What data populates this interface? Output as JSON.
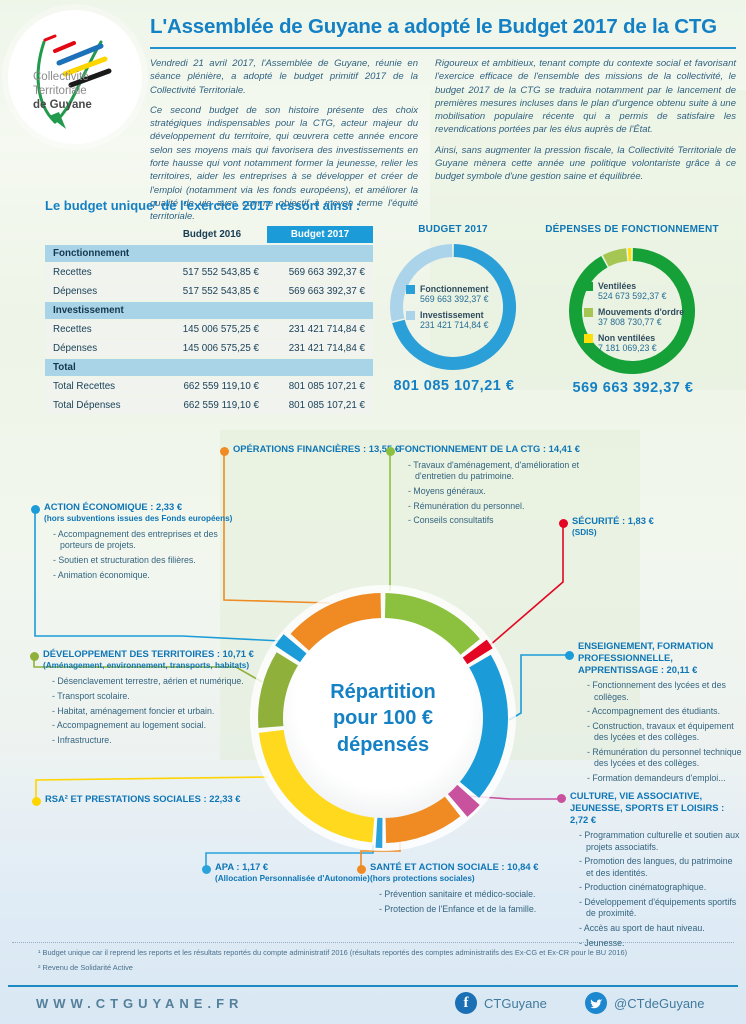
{
  "header": {
    "logo": {
      "line1": "Collectivité",
      "line2": "Territoriale",
      "line3": "de Guyane"
    },
    "title": "L'Assemblée de Guyane a adopté le Budget 2017 de la CTG",
    "intro_left": [
      "Vendredi 21 avril 2017, l'Assemblée de Guyane, réunie en séance plénière, a adopté le budget primitif 2017 de la Collectivité Territoriale.",
      "Ce second budget de son histoire présente des choix stratégiques indispensables pour la CTG, acteur majeur du développement du territoire, qui œuvrera cette année encore selon ses moyens mais qui favorisera des investissements en forte hausse qui vont notamment former la jeunesse, relier les territoires, aider les entreprises à se développer et créer de l'emploi (notamment via les fonds européens), et améliorer la qualité de vie avec comme objectif à moyen terme l'équité territoriale."
    ],
    "intro_right": [
      "Rigoureux et ambitieux, tenant compte du contexte social et favorisant l'exercice efficace de l'ensemble des missions de la collectivité, le budget 2017 de la CTG se traduira notamment par le lancement de premières mesures incluses dans le plan d'urgence obtenu suite à une mobilisation populaire récente qui a permis de satisfaire les revendications portées par les élus auprès de l'État.",
      "Ainsi, sans augmenter la pression fiscale, la Collectivité Territoriale de Guyane mènera cette année une politique volontariste grâce à ce budget symbole d'une gestion saine et équilibrée."
    ]
  },
  "budget_section": {
    "heading": "Le budget unique¹ de l'exercice 2017 ressort ainsi :",
    "table": {
      "columns": [
        "",
        "Budget 2016",
        "Budget 2017"
      ],
      "rows": [
        {
          "type": "section",
          "label": "Fonctionnement"
        },
        {
          "type": "data",
          "label": "Recettes",
          "budget2016": "517 552 543,85 €",
          "budget2017": "569 663 392,37 €"
        },
        {
          "type": "data",
          "label": "Dépenses",
          "budget2016": "517 552 543,85 €",
          "budget2017": "569 663 392,37 €"
        },
        {
          "type": "section",
          "label": "Investissement"
        },
        {
          "type": "data",
          "label": "Recettes",
          "budget2016": "145 006 575,25 €",
          "budget2017": "231 421 714,84 €"
        },
        {
          "type": "data",
          "label": "Dépenses",
          "budget2016": "145 006 575,25 €",
          "budget2017": "231 421 714,84 €"
        },
        {
          "type": "section",
          "label": "Total"
        },
        {
          "type": "data",
          "label": "Total Recettes",
          "budget2016": "662 559 119,10 €",
          "budget2017": "801 085 107,21 €"
        },
        {
          "type": "data",
          "label": "Total Dépenses",
          "budget2016": "662 559 119,10 €",
          "budget2017": "801 085 107,21 €"
        }
      ]
    }
  },
  "donut_budget2017": {
    "title": "BUDGET 2017",
    "total": "801 085 107,21 €",
    "legend": [
      {
        "label": "Fonctionnement",
        "value": "569 663 392,37 €",
        "color": "#2b9fd8"
      },
      {
        "label": "Investissement",
        "value": "231 421 714,84 €",
        "color": "#abd3ea"
      }
    ]
  },
  "donut_depenses": {
    "title": "DÉPENSES DE FONCTIONNEMENT",
    "total": "569 663 392,37 €",
    "legend": [
      {
        "label": "Ventilées",
        "value": "524 673 592,37 €",
        "color": "#16a038"
      },
      {
        "label": "Mouvements d'ordre",
        "value": "37 808 730,77 €",
        "color": "#a6c653"
      },
      {
        "label": "Non ventilées",
        "value": "7 181 069,23 €",
        "color": "#ffdf0a"
      }
    ]
  },
  "repartition": {
    "center": [
      "Répartition",
      "pour 100 €",
      "dépensés"
    ],
    "categories": {
      "op_financieres": {
        "title": "OPÉRATIONS FINANCIÈRES : 13,55 €",
        "value": 13.55,
        "color": "#ef8b22"
      },
      "fonct_ctg": {
        "title": "FONCTIONNEMENT DE LA CTG : 14,41 €",
        "value": 14.41,
        "color": "#8cc03f",
        "items": [
          "Travaux d'aménagement, d'amélioration et d'entretien du patrimoine.",
          "Moyens généraux.",
          "Rémunération du personnel.",
          "Conseils consultatifs"
        ]
      },
      "action_eco": {
        "title": "ACTION ÉCONOMIQUE : 2,33 €",
        "subnote": "(hors subventions issues des Fonds européens)",
        "value": 2.33,
        "color": "#1b9cd8",
        "items": [
          "Accompagnement des entreprises et des porteurs de projets.",
          "Soutien et structuration des filières.",
          "Animation économique."
        ]
      },
      "securite": {
        "title": "SÉCURITÉ : 1,83 €",
        "subnote": "(SDIS)",
        "value": 1.83,
        "color": "#e30521"
      },
      "dev_territoires": {
        "title": "DÉVELOPPEMENT DES TERRITOIRES : 10,71 €",
        "subnote": "(Aménagement, environnement, transports, habitats)",
        "value": 10.71,
        "color": "#8fb03a",
        "items": [
          "Désenclavement terrestre, aérien et numérique.",
          "Transport scolaire.",
          "Habitat, aménagement foncier et urbain.",
          "Accompagnement au logement social.",
          "Infrastructure."
        ]
      },
      "enseignement": {
        "title": "ENSEIGNEMENT, FORMATION PROFESSIONNELLE, APPRENTISSAGE : 20,11 €",
        "value": 20.11,
        "color": "#1b9cd8",
        "items": [
          "Fonctionnement des lycées et des collèges.",
          "Accompagnement des étudiants.",
          "Construction, travaux et équipement des lycées et des collèges.",
          "Rémunération du personnel technique des lycées et des collèges.",
          "Formation demandeurs d'emploi..."
        ]
      },
      "rsa": {
        "title": "RSA² ET PRESTATIONS SOCIALES : 22,33 €",
        "value": 22.33,
        "color": "#ffd500"
      },
      "culture": {
        "title": "CULTURE, VIE ASSOCIATIVE, JEUNESSE, SPORTS ET LOISIRS : 2,72 €",
        "value": 2.72,
        "color": "#c9529e",
        "items": [
          "Programmation culturelle et soutien aux projets associatifs.",
          "Promotion des langues, du patrimoine et des identités.",
          "Production cinématographique.",
          "Développement d'équipements sportifs de proximité.",
          "Accès au sport de haut niveau.",
          "Jeunesse."
        ]
      },
      "apa": {
        "title": "APA : 1,17 €",
        "subnote": "(Allocation Personnalisée d'Autonomie)",
        "value": 1.17,
        "color": "#2aa3dc"
      },
      "sante": {
        "title": "SANTÉ ET ACTION SOCIALE : 10,84 €",
        "subnote": "(hors protections sociales)",
        "value": 10.84,
        "color": "#ef8b22",
        "items": [
          "Prévention sanitaire et médico-sociale.",
          "Protection de l'Enfance et de la famille."
        ]
      }
    }
  },
  "chart_data": [
    {
      "type": "pie",
      "title": "BUDGET 2017",
      "labels": [
        "Fonctionnement",
        "Investissement"
      ],
      "values": [
        569663392.37,
        231421714.84
      ],
      "colors": [
        "#2b9fd8",
        "#abd3ea"
      ],
      "total_label": "801 085 107,21 €",
      "legend_position": "center"
    },
    {
      "type": "pie",
      "title": "DÉPENSES DE FONCTIONNEMENT",
      "labels": [
        "Ventilées",
        "Mouvements d'ordre",
        "Non ventilées"
      ],
      "values": [
        524673592.37,
        37808730.77,
        7181069.23
      ],
      "colors": [
        "#16a038",
        "#a6c653",
        "#ffdf0a"
      ],
      "total_label": "569 663 392,37 €",
      "legend_position": "center"
    },
    {
      "type": "pie",
      "title": "Répartition pour 100 € dépensés",
      "labels": [
        "Fonctionnement de la CTG",
        "Sécurité",
        "Enseignement, formation professionnelle, apprentissage",
        "Culture, vie associative, jeunesse, sports et loisirs",
        "Santé et action sociale",
        "APA",
        "RSA et prestations sociales",
        "Développement des territoires",
        "Action économique",
        "Opérations financières"
      ],
      "values": [
        14.41,
        1.83,
        20.11,
        2.72,
        10.84,
        1.17,
        22.33,
        10.71,
        2.33,
        13.55
      ],
      "colors": [
        "#8cc03f",
        "#e30521",
        "#1b9cd8",
        "#c9529e",
        "#ef8b22",
        "#2aa3dc",
        "#ffd91e",
        "#8fb03a",
        "#1b9cd8",
        "#ef8b22"
      ]
    }
  ],
  "footer": {
    "footnote1": "¹ Budget unique car il reprend les reports et les résultats reportés du compte administratif 2016 (résultats reportés des comptes administratifs des Ex-CG et Ex-CR pour le BU 2016)",
    "footnote2": "² Revenu de Solidarité Active",
    "website": "WWW.CTGUYANE.FR",
    "facebook": "CTGuyane",
    "twitter": "@CTdeGuyane"
  }
}
